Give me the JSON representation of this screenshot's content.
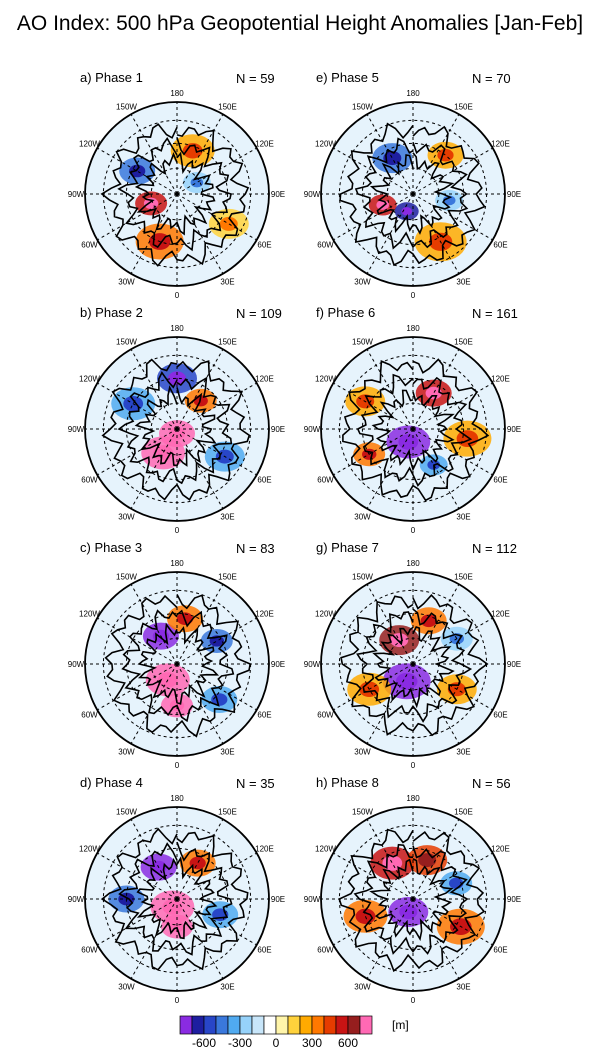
{
  "title": "AO Index: 500 hPa Geopotential Height Anomalies [Jan-Feb]",
  "panels": [
    {
      "label": "a) Phase 1",
      "n": "N = 59"
    },
    {
      "label": "e) Phase 5",
      "n": "N = 70"
    },
    {
      "label": "b) Phase 2",
      "n": "N = 109"
    },
    {
      "label": "f) Phase 6",
      "n": "N = 161"
    },
    {
      "label": "c) Phase 3",
      "n": "N = 83"
    },
    {
      "label": "g) Phase 7",
      "n": "N = 112"
    },
    {
      "label": "d) Phase 4",
      "n": "N = 35"
    },
    {
      "label": "h) Phase 8",
      "n": "N = 56"
    }
  ],
  "map_labels": [
    "180",
    "150E",
    "120E",
    "90E",
    "60E",
    "30E",
    "0",
    "30W",
    "60W",
    "90W",
    "120W",
    "150W"
  ],
  "colorbar": {
    "unit": "[m]",
    "tick_labels": [
      "-600",
      "-300",
      "0",
      "300",
      "600"
    ],
    "colors": [
      "#8a2be2",
      "#1e1ea0",
      "#2846c8",
      "#3a78dc",
      "#50aaf0",
      "#96d2fa",
      "#c8e6fa",
      "#ffffff",
      "#fff5aa",
      "#ffd23c",
      "#ffaa00",
      "#ff7800",
      "#e63c00",
      "#c81414",
      "#961e1e",
      "#ff69b4"
    ]
  },
  "chart_data": {
    "type": "heatmap",
    "title": "AO Index: 500 hPa Geopotential Height Anomalies [Jan-Feb]",
    "projection": "north polar stereographic",
    "variable": "500 hPa Geopotential Height Anomalies",
    "unit": "m",
    "color_scale_ticks": [
      -600,
      -300,
      0,
      300,
      600
    ],
    "panels": [
      {
        "label": "a) Phase 1",
        "phase": 1,
        "n": 59
      },
      {
        "label": "b) Phase 2",
        "phase": 2,
        "n": 109
      },
      {
        "label": "c) Phase 3",
        "phase": 3,
        "n": 83
      },
      {
        "label": "d) Phase 4",
        "phase": 4,
        "n": 35
      },
      {
        "label": "e) Phase 5",
        "phase": 5,
        "n": 70
      },
      {
        "label": "f) Phase 6",
        "phase": 6,
        "n": 161
      },
      {
        "label": "g) Phase 7",
        "phase": 7,
        "n": 112
      },
      {
        "label": "h) Phase 8",
        "phase": 8,
        "n": 56
      }
    ]
  }
}
